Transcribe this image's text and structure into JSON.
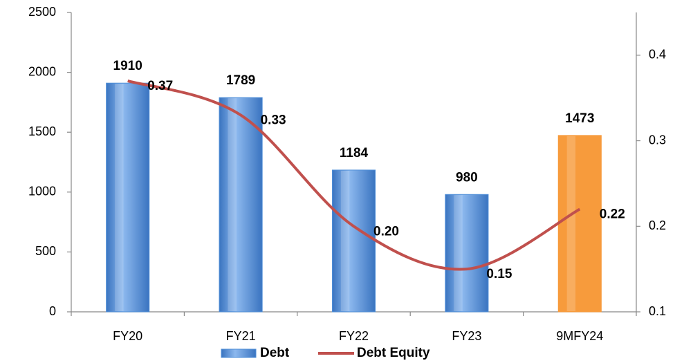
{
  "chart_data": {
    "type": "bar",
    "categories": [
      "FY20",
      "FY21",
      "FY22",
      "FY23",
      "9MFY24"
    ],
    "series": [
      {
        "name": "Debt",
        "type": "bar",
        "values": [
          1910,
          1789,
          1184,
          980,
          1473
        ],
        "colors": [
          "#4f8fd8",
          "#4f8fd8",
          "#4f8fd8",
          "#4f8fd8",
          "#f79b3c"
        ],
        "color": "#4f8fd8"
      },
      {
        "name": "Debt Equity",
        "type": "line",
        "axis": "y2",
        "color": "#c0504d",
        "values": [
          0.37,
          0.33,
          0.2,
          0.15,
          0.22
        ],
        "value_labels": [
          "0.37",
          "0.33",
          "0.20",
          "0.15",
          "0.22"
        ]
      }
    ],
    "ylim": [
      0,
      2500
    ],
    "yticks": [
      0,
      500,
      1000,
      1500,
      2000,
      2500
    ],
    "y2lim": [
      0.1,
      0.45
    ],
    "y2ticks": [
      0.1,
      0.2,
      0.3,
      0.4
    ],
    "legend": "bottom"
  }
}
